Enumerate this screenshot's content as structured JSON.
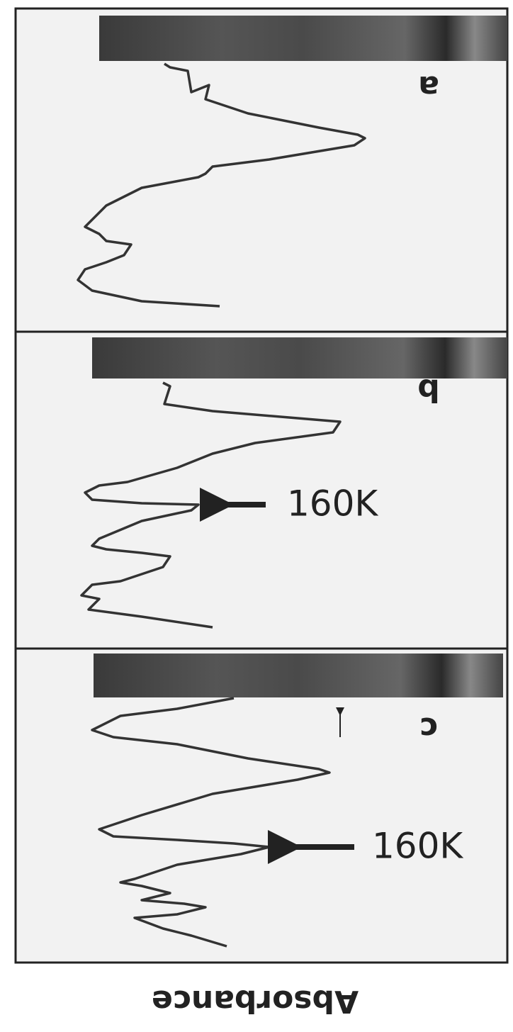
{
  "panels": [
    {
      "label": "a"
    },
    {
      "label": "b",
      "annotation": "160K"
    },
    {
      "label": "c",
      "annotation": "160K"
    }
  ],
  "axis_label": "Absorbance"
}
